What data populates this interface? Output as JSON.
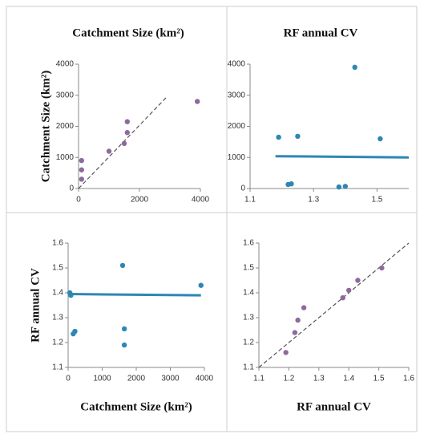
{
  "chart_data": [
    {
      "type": "scatter",
      "title": "Catchment Size (km²)",
      "ylabel": "Catchment Size (km²)",
      "xlim": [
        0,
        4000
      ],
      "xticks": [
        0,
        2000,
        4000
      ],
      "ylim": [
        0,
        4000
      ],
      "yticks": [
        0,
        1000,
        2000,
        3000,
        4000
      ],
      "series": [
        {
          "color": "#8e6a9a",
          "x": [
            100,
            100,
            100,
            1000,
            1500,
            1600,
            1600,
            3900
          ],
          "values": [
            900,
            600,
            300,
            1200,
            1450,
            1800,
            2150,
            2800
          ]
        }
      ],
      "reference_line": {
        "x": [
          0,
          2900
        ],
        "values": [
          0,
          2950
        ],
        "color": "#555"
      }
    },
    {
      "type": "scatter",
      "title": "RF annual CV",
      "xlim": [
        1.1,
        1.6
      ],
      "xticks": [
        1.1,
        1.3,
        1.5
      ],
      "ylim": [
        0,
        4000
      ],
      "yticks": [
        0,
        1000,
        2000,
        3000,
        4000
      ],
      "series": [
        {
          "color": "#2e86b5",
          "x": [
            1.19,
            1.25,
            1.22,
            1.23,
            1.38,
            1.4,
            1.43,
            1.51
          ],
          "values": [
            1650,
            1680,
            130,
            150,
            50,
            70,
            3900,
            1600
          ]
        }
      ],
      "trend_line": {
        "x": [
          1.18,
          1.6
        ],
        "values": [
          1040,
          1000
        ],
        "color": "#2e86b5"
      }
    },
    {
      "type": "scatter",
      "xlabel": "Catchment Size (km²)",
      "ylabel": "RF annual CV",
      "xlim": [
        0,
        4000
      ],
      "xticks": [
        0,
        1000,
        2000,
        3000,
        4000
      ],
      "ylim": [
        1.1,
        1.6
      ],
      "yticks": [
        1.1,
        1.2,
        1.3,
        1.4,
        1.5,
        1.6
      ],
      "series": [
        {
          "color": "#2e86b5",
          "x": [
            50,
            80,
            150,
            200,
            1600,
            1650,
            1650,
            3900
          ],
          "values": [
            1.4,
            1.39,
            1.235,
            1.245,
            1.51,
            1.255,
            1.19,
            1.43
          ]
        }
      ],
      "trend_line": {
        "x": [
          0,
          3900
        ],
        "values": [
          1.395,
          1.39
        ],
        "color": "#2e86b5"
      }
    },
    {
      "type": "scatter",
      "xlabel": "RF annual CV",
      "xlim": [
        1.1,
        1.6
      ],
      "xticks": [
        1.1,
        1.2,
        1.3,
        1.4,
        1.5,
        1.6
      ],
      "ylim": [
        1.1,
        1.6
      ],
      "yticks": [
        1.1,
        1.2,
        1.3,
        1.4,
        1.5,
        1.6
      ],
      "series": [
        {
          "color": "#8e6a9a",
          "x": [
            1.19,
            1.22,
            1.23,
            1.25,
            1.38,
            1.4,
            1.43,
            1.51
          ],
          "values": [
            1.16,
            1.24,
            1.29,
            1.34,
            1.38,
            1.41,
            1.45,
            1.5
          ]
        }
      ],
      "reference_line": {
        "x": [
          1.1,
          1.6
        ],
        "values": [
          1.1,
          1.6
        ],
        "color": "#555"
      }
    }
  ]
}
